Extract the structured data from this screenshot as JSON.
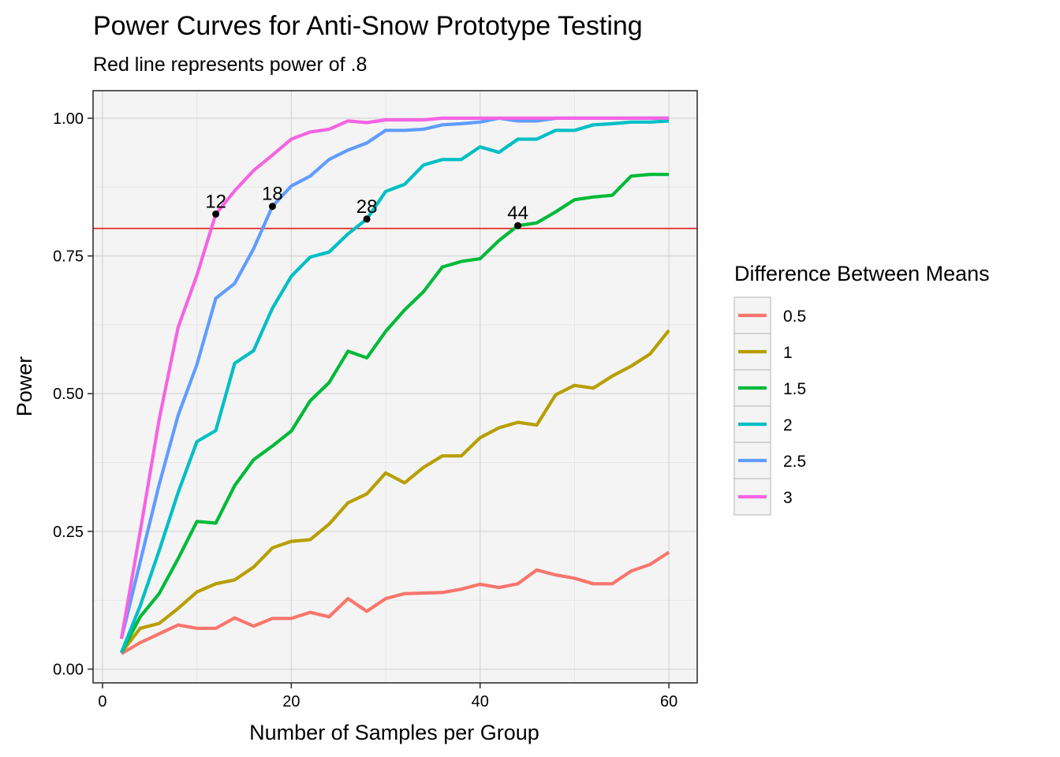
{
  "chart_data": {
    "type": "line",
    "title": "Power Curves for Anti-Snow Prototype Testing",
    "subtitle": "Red line represents power of .8",
    "xlabel": "Number of Samples per Group",
    "ylabel": "Power",
    "xlim": [
      -1,
      63
    ],
    "ylim": [
      -0.025,
      1.05
    ],
    "x_ticks": [
      0,
      20,
      40,
      60
    ],
    "x_tick_labels": [
      "0",
      "20",
      "40",
      "60"
    ],
    "y_ticks": [
      0,
      0.25,
      0.5,
      0.75,
      1
    ],
    "y_tick_labels": [
      "0.00",
      "0.25",
      "0.50",
      "0.75",
      "1.00"
    ],
    "grid": true,
    "legend_title": "Difference Between Means",
    "legend_position": "right",
    "reference_line": {
      "y": 0.8,
      "color": "#e41a1c"
    },
    "x": [
      2,
      4,
      6,
      8,
      10,
      12,
      14,
      16,
      18,
      20,
      22,
      24,
      26,
      28,
      30,
      32,
      34,
      36,
      38,
      40,
      42,
      44,
      46,
      48,
      50,
      52,
      54,
      56,
      58,
      60
    ],
    "series": [
      {
        "name": "0.5",
        "color": "#F8766D",
        "values": [
          0.028,
          0.048,
          0.064,
          0.08,
          0.074,
          0.074,
          0.093,
          0.078,
          0.092,
          0.092,
          0.103,
          0.095,
          0.128,
          0.105,
          0.128,
          0.137,
          0.138,
          0.139,
          0.145,
          0.154,
          0.148,
          0.155,
          0.18,
          0.171,
          0.165,
          0.155,
          0.155,
          0.178,
          0.19,
          0.212
        ]
      },
      {
        "name": "1",
        "color": "#B79F00",
        "values": [
          0.03,
          0.074,
          0.083,
          0.11,
          0.14,
          0.155,
          0.162,
          0.185,
          0.22,
          0.232,
          0.235,
          0.263,
          0.302,
          0.318,
          0.356,
          0.338,
          0.366,
          0.387,
          0.387,
          0.42,
          0.438,
          0.448,
          0.443,
          0.498,
          0.515,
          0.51,
          0.532,
          0.55,
          0.572,
          0.615
        ]
      },
      {
        "name": "1.5",
        "color": "#00BA38",
        "values": [
          0.03,
          0.095,
          0.137,
          0.2,
          0.268,
          0.265,
          0.333,
          0.38,
          0.405,
          0.432,
          0.487,
          0.52,
          0.577,
          0.565,
          0.613,
          0.652,
          0.685,
          0.73,
          0.74,
          0.745,
          0.778,
          0.805,
          0.81,
          0.83,
          0.852,
          0.857,
          0.86,
          0.895,
          0.898,
          0.898
        ]
      },
      {
        "name": "2",
        "color": "#00BFC4",
        "values": [
          0.03,
          0.115,
          0.215,
          0.32,
          0.413,
          0.433,
          0.555,
          0.578,
          0.655,
          0.713,
          0.748,
          0.757,
          0.79,
          0.817,
          0.867,
          0.88,
          0.915,
          0.925,
          0.925,
          0.948,
          0.938,
          0.962,
          0.962,
          0.978,
          0.978,
          0.988,
          0.99,
          0.993,
          0.993,
          0.995
        ]
      },
      {
        "name": "2.5",
        "color": "#619CFF",
        "values": [
          0.055,
          0.195,
          0.335,
          0.46,
          0.553,
          0.673,
          0.7,
          0.763,
          0.84,
          0.877,
          0.895,
          0.925,
          0.942,
          0.955,
          0.978,
          0.978,
          0.98,
          0.988,
          0.99,
          0.993,
          1.0,
          0.995,
          0.995,
          1.0,
          1.0,
          1.0,
          1.0,
          1.0,
          1.0,
          1.0
        ]
      },
      {
        "name": "3",
        "color": "#F564E3",
        "values": [
          0.055,
          0.25,
          0.453,
          0.62,
          0.715,
          0.826,
          0.868,
          0.905,
          0.933,
          0.962,
          0.975,
          0.98,
          0.995,
          0.992,
          0.997,
          0.997,
          0.997,
          1.0,
          1.0,
          1.0,
          1.0,
          1.0,
          1.0,
          1.0,
          1.0,
          1.0,
          1.0,
          1.0,
          1.0,
          1.0
        ]
      }
    ],
    "annotations": [
      {
        "x": 12,
        "y": 0.826,
        "label": "12"
      },
      {
        "x": 18,
        "y": 0.84,
        "label": "18"
      },
      {
        "x": 28,
        "y": 0.817,
        "label": "28"
      },
      {
        "x": 44,
        "y": 0.805,
        "label": "44"
      }
    ]
  }
}
